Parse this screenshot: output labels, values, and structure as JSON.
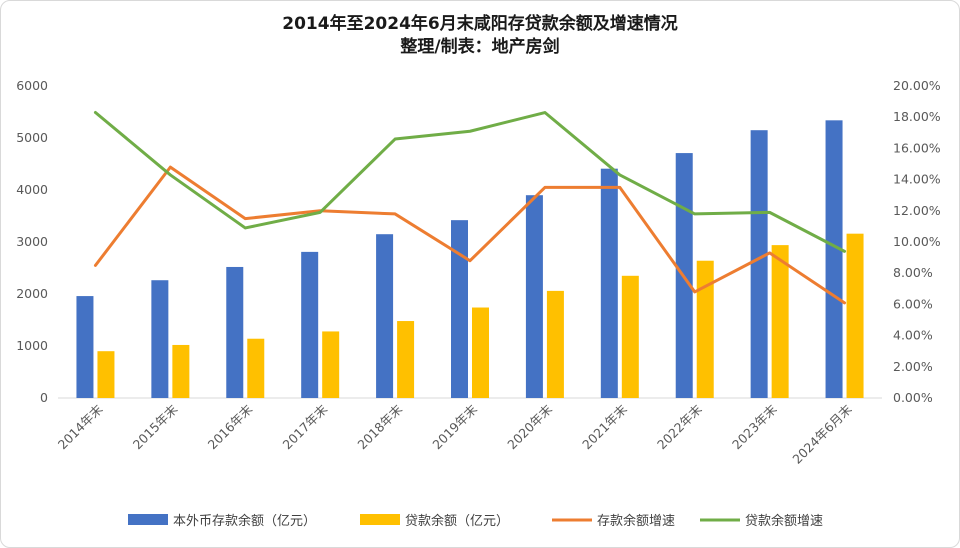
{
  "chart_data": {
    "type": "bar",
    "title": "2014年至2024年6月末咸阳存贷款余额及增速情况",
    "subtitle": "整理/制表：地产房剑",
    "categories": [
      "2014年末",
      "2015年末",
      "2016年末",
      "2017年末",
      "2018年末",
      "2019年末",
      "2020年末",
      "2021年末",
      "2022年末",
      "2023年末",
      "2024年6月末"
    ],
    "y_left": {
      "min": 0,
      "max": 6000,
      "ticks": [
        "0",
        "1000",
        "2000",
        "3000",
        "4000",
        "5000",
        "6000"
      ]
    },
    "y_right": {
      "min": 0,
      "max": 20,
      "ticks": [
        "0.00%",
        "2.00%",
        "4.00%",
        "6.00%",
        "8.00%",
        "10.00%",
        "12.00%",
        "14.00%",
        "16.00%",
        "18.00%",
        "20.00%"
      ]
    },
    "series": [
      {
        "name": "本外币存款余额（亿元）",
        "kind": "bar",
        "axis": "left",
        "color": "#4472C4",
        "values": [
          1960,
          2265,
          2520,
          2810,
          3150,
          3420,
          3900,
          4410,
          4710,
          5150,
          5340
        ]
      },
      {
        "name": "贷款余额（亿元）",
        "kind": "bar",
        "axis": "left",
        "color": "#FFC000",
        "values": [
          900,
          1020,
          1140,
          1280,
          1480,
          1740,
          2060,
          2350,
          2640,
          2940,
          3160
        ]
      },
      {
        "name": "存款余额增速",
        "kind": "line",
        "axis": "right",
        "color": "#ED7D31",
        "values": [
          8.5,
          14.8,
          11.5,
          12.0,
          11.8,
          8.8,
          13.5,
          13.5,
          6.8,
          9.3,
          6.1
        ]
      },
      {
        "name": "贷款余额增速",
        "kind": "line",
        "axis": "right",
        "color": "#70AD47",
        "values": [
          18.3,
          14.3,
          10.9,
          11.9,
          16.6,
          17.1,
          18.3,
          14.3,
          11.8,
          11.9,
          9.4
        ]
      }
    ],
    "grid": false,
    "legend": "bottom"
  }
}
